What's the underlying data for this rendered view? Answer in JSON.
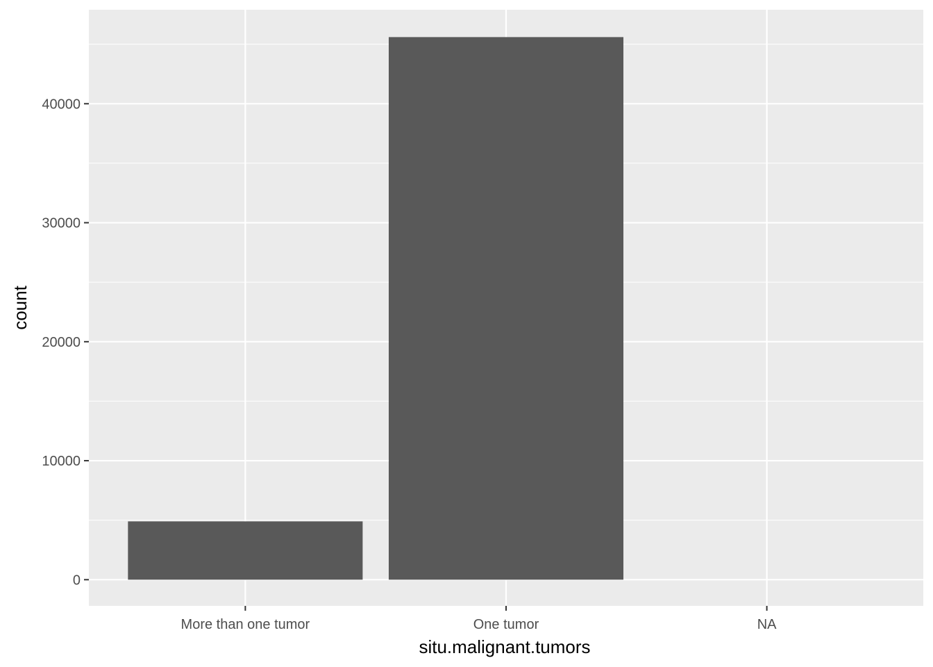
{
  "chart_data": {
    "type": "bar",
    "categories": [
      "More than one tumor",
      "One tumor",
      "NA"
    ],
    "values": [
      4900,
      45600,
      0
    ],
    "title": "",
    "xlabel": "situ.malignant.tumors",
    "ylabel": "count",
    "ylim": [
      -2200,
      47900
    ],
    "yticks": [
      0,
      10000,
      20000,
      30000,
      40000
    ],
    "ytick_labels": [
      "0",
      "10000",
      "20000",
      "30000",
      "40000"
    ],
    "grid": true,
    "legend": "none",
    "colors": {
      "panel": "#ebebeb",
      "grid": "#ffffff",
      "bar": "#595959",
      "tick": "#333333"
    }
  }
}
